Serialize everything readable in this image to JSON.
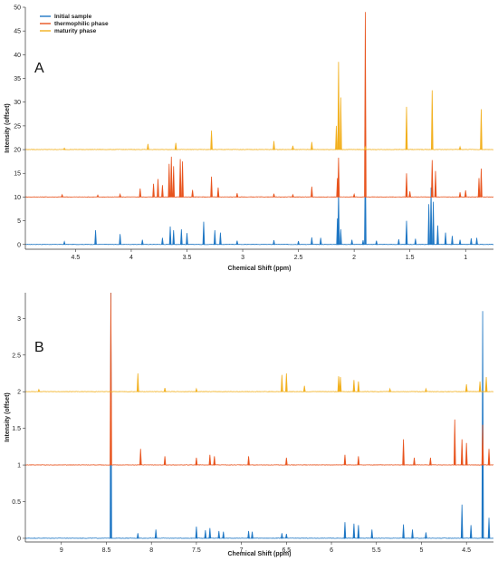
{
  "colors": {
    "initial": "#1f77c4",
    "thermophilic": "#e8541e",
    "maturity": "#f2b01e"
  },
  "chart_data": [
    {
      "type": "line",
      "panel_label": "A",
      "xlabel": "Chemical Shift (ppm)",
      "ylabel": "Intensity (offset)",
      "x_reversed": true,
      "xlim": [
        0.75,
        4.95
      ],
      "ylim": [
        -1,
        50
      ],
      "x_ticks": [
        4.5,
        4,
        3.5,
        3,
        2.5,
        2,
        1.5,
        1
      ],
      "x_tick_labels": [
        "4.5",
        "4",
        "3.5",
        "3",
        "2.5",
        "2",
        "1.5",
        "1"
      ],
      "y_ticks": [
        0,
        5,
        10,
        15,
        20,
        25,
        30,
        35,
        40,
        45,
        50
      ],
      "y_tick_labels": [
        "0",
        "5",
        "10",
        "15",
        "20",
        "25",
        "30",
        "35",
        "40",
        "45",
        "50"
      ],
      "legend": {
        "placement": "top-left",
        "entries": [
          "Initial sample",
          "thermophilic phase",
          "maturity phase"
        ]
      },
      "series": [
        {
          "name": "Initial sample",
          "color": "#1f77c4",
          "baseline": 0,
          "peaks": [
            {
              "x": 4.6,
              "y": 0.6
            },
            {
              "x": 4.32,
              "y": 3.0
            },
            {
              "x": 4.1,
              "y": 2.2
            },
            {
              "x": 3.9,
              "y": 1.0
            },
            {
              "x": 3.72,
              "y": 1.4
            },
            {
              "x": 3.65,
              "y": 3.8
            },
            {
              "x": 3.62,
              "y": 3.0
            },
            {
              "x": 3.55,
              "y": 3.2
            },
            {
              "x": 3.5,
              "y": 2.4
            },
            {
              "x": 3.35,
              "y": 4.8
            },
            {
              "x": 3.25,
              "y": 3.0
            },
            {
              "x": 3.2,
              "y": 2.5
            },
            {
              "x": 3.05,
              "y": 0.8
            },
            {
              "x": 2.72,
              "y": 0.9
            },
            {
              "x": 2.5,
              "y": 0.7
            },
            {
              "x": 2.38,
              "y": 1.5
            },
            {
              "x": 2.3,
              "y": 1.4
            },
            {
              "x": 2.15,
              "y": 5.5
            },
            {
              "x": 2.14,
              "y": 11.5
            },
            {
              "x": 2.12,
              "y": 3.2
            },
            {
              "x": 2.02,
              "y": 1.0
            },
            {
              "x": 1.92,
              "y": 0.9
            },
            {
              "x": 1.9,
              "y": 20.0
            },
            {
              "x": 1.8,
              "y": 0.8
            },
            {
              "x": 1.6,
              "y": 1.1
            },
            {
              "x": 1.53,
              "y": 5.0
            },
            {
              "x": 1.45,
              "y": 1.2
            },
            {
              "x": 1.33,
              "y": 8.5
            },
            {
              "x": 1.31,
              "y": 12.0
            },
            {
              "x": 1.29,
              "y": 9.0
            },
            {
              "x": 1.25,
              "y": 4.0
            },
            {
              "x": 1.18,
              "y": 2.5
            },
            {
              "x": 1.12,
              "y": 1.8
            },
            {
              "x": 1.05,
              "y": 1.0
            },
            {
              "x": 0.95,
              "y": 1.3
            },
            {
              "x": 0.9,
              "y": 1.4
            }
          ]
        },
        {
          "name": "thermophilic phase",
          "color": "#e8541e",
          "baseline": 10,
          "peaks": [
            {
              "x": 4.62,
              "y": 10.5
            },
            {
              "x": 4.3,
              "y": 10.4
            },
            {
              "x": 4.1,
              "y": 10.6
            },
            {
              "x": 3.92,
              "y": 11.8
            },
            {
              "x": 3.8,
              "y": 12.8
            },
            {
              "x": 3.76,
              "y": 13.8
            },
            {
              "x": 3.72,
              "y": 12.5
            },
            {
              "x": 3.66,
              "y": 17.0
            },
            {
              "x": 3.64,
              "y": 18.5
            },
            {
              "x": 3.62,
              "y": 16.5
            },
            {
              "x": 3.56,
              "y": 18.0
            },
            {
              "x": 3.54,
              "y": 17.5
            },
            {
              "x": 3.45,
              "y": 11.5
            },
            {
              "x": 3.28,
              "y": 14.3
            },
            {
              "x": 3.22,
              "y": 12.0
            },
            {
              "x": 3.05,
              "y": 10.8
            },
            {
              "x": 2.72,
              "y": 10.7
            },
            {
              "x": 2.55,
              "y": 10.5
            },
            {
              "x": 2.38,
              "y": 12.2
            },
            {
              "x": 2.15,
              "y": 14.0
            },
            {
              "x": 2.14,
              "y": 18.3
            },
            {
              "x": 2.0,
              "y": 10.6
            },
            {
              "x": 1.9,
              "y": 49.0
            },
            {
              "x": 1.53,
              "y": 15.0
            },
            {
              "x": 1.5,
              "y": 11.2
            },
            {
              "x": 1.3,
              "y": 17.8
            },
            {
              "x": 1.27,
              "y": 15.5
            },
            {
              "x": 1.05,
              "y": 11.0
            },
            {
              "x": 1.0,
              "y": 11.4
            },
            {
              "x": 0.88,
              "y": 14.0
            },
            {
              "x": 0.86,
              "y": 16.0
            }
          ]
        },
        {
          "name": "maturity phase",
          "color": "#f2b01e",
          "baseline": 20,
          "peaks": [
            {
              "x": 4.6,
              "y": 20.3
            },
            {
              "x": 3.85,
              "y": 21.2
            },
            {
              "x": 3.6,
              "y": 21.4
            },
            {
              "x": 3.28,
              "y": 24.0
            },
            {
              "x": 2.72,
              "y": 21.8
            },
            {
              "x": 2.55,
              "y": 20.8
            },
            {
              "x": 2.38,
              "y": 21.6
            },
            {
              "x": 2.16,
              "y": 25.0
            },
            {
              "x": 2.14,
              "y": 38.5
            },
            {
              "x": 2.12,
              "y": 31.0
            },
            {
              "x": 1.9,
              "y": 20.6
            },
            {
              "x": 1.53,
              "y": 29.0
            },
            {
              "x": 1.3,
              "y": 32.5
            },
            {
              "x": 1.05,
              "y": 20.6
            },
            {
              "x": 0.86,
              "y": 28.5
            }
          ]
        }
      ]
    },
    {
      "type": "line",
      "panel_label": "B",
      "xlabel": "Chemical Shift (ppm)",
      "ylabel": "Intensity (offset)",
      "x_reversed": true,
      "xlim": [
        4.2,
        9.4
      ],
      "ylim": [
        -0.05,
        3.35
      ],
      "x_ticks": [
        9,
        8.5,
        8,
        7.5,
        7,
        6.5,
        6,
        5.5,
        5,
        4.5
      ],
      "x_tick_labels": [
        "9",
        "8.5",
        "8",
        "7.5",
        "7",
        "6.5",
        "6",
        "5.5",
        "5",
        "4.5"
      ],
      "y_ticks": [
        0,
        0.5,
        1,
        1.5,
        2,
        2.5,
        3
      ],
      "y_tick_labels": [
        "0",
        "0.5",
        "1",
        "1.5",
        "2",
        "2.5",
        "3"
      ],
      "series": [
        {
          "name": "Initial sample",
          "color": "#1f77c4",
          "baseline": 0,
          "peaks": [
            {
              "x": 8.45,
              "y": 3.35
            },
            {
              "x": 8.15,
              "y": 0.07
            },
            {
              "x": 7.95,
              "y": 0.12
            },
            {
              "x": 7.5,
              "y": 0.16
            },
            {
              "x": 7.4,
              "y": 0.11
            },
            {
              "x": 7.35,
              "y": 0.14
            },
            {
              "x": 7.25,
              "y": 0.1
            },
            {
              "x": 7.2,
              "y": 0.09
            },
            {
              "x": 6.92,
              "y": 0.1
            },
            {
              "x": 6.88,
              "y": 0.09
            },
            {
              "x": 6.55,
              "y": 0.07
            },
            {
              "x": 6.5,
              "y": 0.06
            },
            {
              "x": 5.85,
              "y": 0.22
            },
            {
              "x": 5.75,
              "y": 0.2
            },
            {
              "x": 5.7,
              "y": 0.18
            },
            {
              "x": 5.55,
              "y": 0.12
            },
            {
              "x": 5.2,
              "y": 0.19
            },
            {
              "x": 5.1,
              "y": 0.12
            },
            {
              "x": 4.95,
              "y": 0.08
            },
            {
              "x": 4.55,
              "y": 0.46
            },
            {
              "x": 4.45,
              "y": 0.18
            },
            {
              "x": 4.32,
              "y": 3.1
            },
            {
              "x": 4.25,
              "y": 0.28
            }
          ]
        },
        {
          "name": "thermophilic phase",
          "color": "#e8541e",
          "baseline": 1,
          "peaks": [
            {
              "x": 8.45,
              "y": 3.35
            },
            {
              "x": 8.12,
              "y": 1.22
            },
            {
              "x": 7.85,
              "y": 1.12
            },
            {
              "x": 7.5,
              "y": 1.1
            },
            {
              "x": 7.35,
              "y": 1.14
            },
            {
              "x": 7.3,
              "y": 1.12
            },
            {
              "x": 6.92,
              "y": 1.12
            },
            {
              "x": 6.5,
              "y": 1.1
            },
            {
              "x": 5.85,
              "y": 1.14
            },
            {
              "x": 5.7,
              "y": 1.12
            },
            {
              "x": 5.2,
              "y": 1.35
            },
            {
              "x": 5.08,
              "y": 1.1
            },
            {
              "x": 4.9,
              "y": 1.1
            },
            {
              "x": 4.63,
              "y": 1.62
            },
            {
              "x": 4.55,
              "y": 1.35
            },
            {
              "x": 4.5,
              "y": 1.3
            },
            {
              "x": 4.32,
              "y": 1.55
            },
            {
              "x": 4.25,
              "y": 1.22
            }
          ]
        },
        {
          "name": "maturity phase",
          "color": "#f2b01e",
          "baseline": 2,
          "peaks": [
            {
              "x": 9.25,
              "y": 2.03
            },
            {
              "x": 8.15,
              "y": 2.25
            },
            {
              "x": 7.85,
              "y": 2.05
            },
            {
              "x": 7.5,
              "y": 2.04
            },
            {
              "x": 6.55,
              "y": 2.23
            },
            {
              "x": 6.5,
              "y": 2.25
            },
            {
              "x": 6.3,
              "y": 2.08
            },
            {
              "x": 5.92,
              "y": 2.21
            },
            {
              "x": 5.9,
              "y": 2.2
            },
            {
              "x": 5.75,
              "y": 2.16
            },
            {
              "x": 5.7,
              "y": 2.14
            },
            {
              "x": 5.35,
              "y": 2.04
            },
            {
              "x": 4.95,
              "y": 2.04
            },
            {
              "x": 4.5,
              "y": 2.1
            },
            {
              "x": 4.35,
              "y": 2.14
            },
            {
              "x": 4.28,
              "y": 2.2
            }
          ]
        }
      ]
    }
  ]
}
